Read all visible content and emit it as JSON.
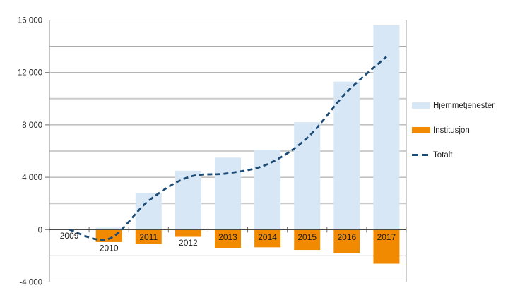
{
  "figure": {
    "background": "#FFFFFF",
    "title": ""
  },
  "chart_data": {
    "type": "bar",
    "subtype": "bar-line-combo",
    "title": "",
    "xlabel": "",
    "ylabel": "",
    "categories": [
      "2009",
      "2010",
      "2011",
      "2012",
      "2013",
      "2014",
      "2015",
      "2016",
      "2017"
    ],
    "series": [
      {
        "name": "Hjemmetjenester",
        "kind": "bar",
        "color": "#D7E7F5",
        "values": [
          0,
          150,
          2800,
          4500,
          5500,
          6100,
          8200,
          11300,
          15600
        ]
      },
      {
        "name": "Institusjon",
        "kind": "bar",
        "color": "#F18A00",
        "values": [
          0,
          -950,
          -1100,
          -550,
          -1400,
          -1350,
          -1550,
          -1800,
          -2600
        ]
      },
      {
        "name": "Totalt",
        "kind": "line",
        "line_style": "dashed",
        "smoothed": true,
        "color": "#1C4B75",
        "values": [
          0,
          -700,
          2200,
          4000,
          4300,
          5000,
          7000,
          10500,
          13200
        ]
      }
    ],
    "ylim": [
      -4000,
      16000
    ],
    "yticks": [
      16000,
      12000,
      8000,
      4000,
      0,
      -4000
    ],
    "ytick_labels": [
      "16 000",
      "12 000",
      "8 000",
      "4 000",
      "0",
      "-4 000"
    ],
    "gridline_interval": 2000,
    "grid": true,
    "legend_position": "right-middle"
  },
  "colors": {
    "hjemmetjenester": "#D7E7F5",
    "institusjon": "#F18A00",
    "totalt": "#1C4B75",
    "gridline": "#9C9C9C",
    "gridline_light": "#CBCBCB",
    "axis_zero": "#4A4A4A",
    "tick": "#6E6E6E",
    "text": "#2B2B2B",
    "category_text": "#1A1A1A"
  }
}
